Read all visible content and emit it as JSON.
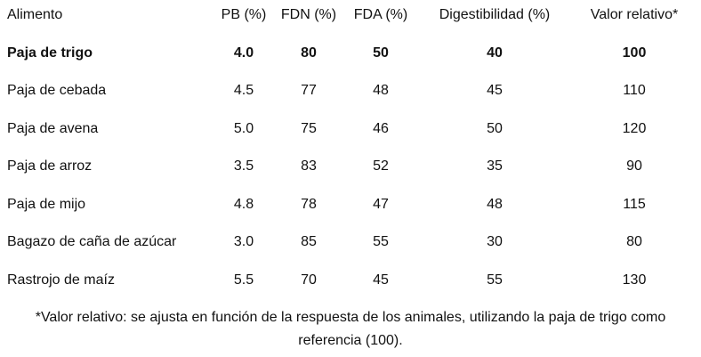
{
  "table": {
    "headers": [
      "Alimento",
      "PB (%)",
      "FDN (%)",
      "FDA (%)",
      "Digestibilidad (%)",
      "Valor relativo*"
    ],
    "rows": [
      [
        "Paja de trigo",
        "4.0",
        "80",
        "50",
        "40",
        "100"
      ],
      [
        "Paja de cebada",
        "4.5",
        "77",
        "48",
        "45",
        "110"
      ],
      [
        "Paja de avena",
        "5.0",
        "75",
        "46",
        "50",
        "120"
      ],
      [
        "Paja de arroz",
        "3.5",
        "83",
        "52",
        "35",
        "90"
      ],
      [
        "Paja de mijo",
        "4.8",
        "78",
        "47",
        "48",
        "115"
      ],
      [
        "Bagazo de caña de azúcar",
        "3.0",
        "85",
        "55",
        "30",
        "80"
      ],
      [
        "Rastrojo de maíz",
        "5.5",
        "70",
        "45",
        "55",
        "130"
      ]
    ]
  },
  "footnote": "*Valor relativo: se ajusta en función de la respuesta de los animales, utilizando la paja de trigo como referencia (100)."
}
